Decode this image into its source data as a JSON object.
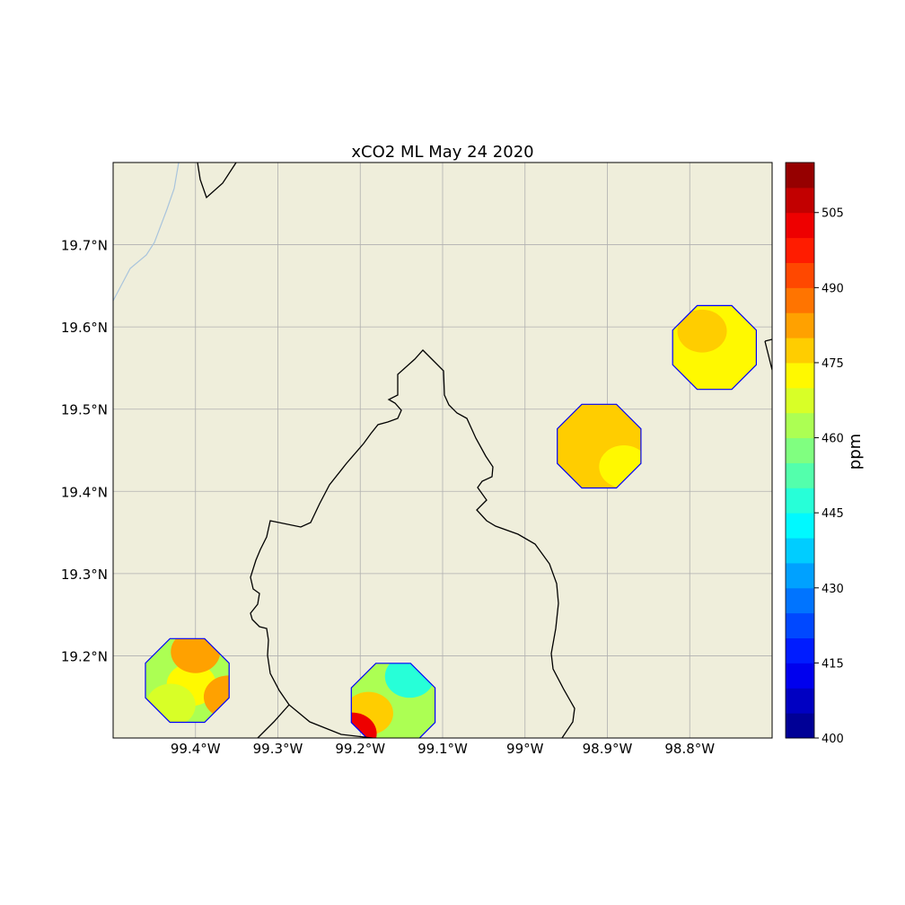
{
  "title": "xCO2 ML May 24 2020",
  "colorbar": {
    "label": "ppm",
    "min": 400,
    "max": 515,
    "step": 5,
    "ticks": [
      "400",
      "415",
      "430",
      "445",
      "460",
      "475",
      "490",
      "505"
    ],
    "tick_values": [
      400,
      415,
      430,
      445,
      460,
      475,
      490,
      505
    ],
    "colormap": "jet"
  },
  "map": {
    "extent": {
      "lon_min": -99.5,
      "lon_max": -98.7,
      "lat_min": 19.1,
      "lat_max": 19.8
    },
    "land_color": "#efeedb",
    "grid_color": "#b0b0b0",
    "border_color": "#000000",
    "river_color": "#a9c4dc",
    "lon_labels": [
      "99.4°W",
      "99.3°W",
      "99.2°W",
      "99.1°W",
      "99°W",
      "98.9°W",
      "98.8°W"
    ],
    "lon_values": [
      -99.4,
      -99.3,
      -99.2,
      -99.1,
      -99.0,
      -98.9,
      -98.8
    ],
    "lat_labels": [
      "19.2°N",
      "19.3°N",
      "19.4°N",
      "19.5°N",
      "19.6°N",
      "19.7°N"
    ],
    "lat_values": [
      19.2,
      19.3,
      19.4,
      19.5,
      19.6,
      19.7
    ]
  },
  "chart_data": {
    "type": "heatmap",
    "title": "xCO2 ML May 24 2020",
    "colorbar_label": "ppm",
    "value_range": [
      400,
      515
    ],
    "patches": [
      {
        "region": "southwest",
        "center": [
          -99.41,
          19.17
        ],
        "blobs": [
          {
            "center": [
              -99.465,
              19.17
            ],
            "value": 462
          },
          {
            "center": [
              -99.405,
              19.165
            ],
            "value": 470
          },
          {
            "center": [
              -99.4,
              19.205
            ],
            "value": 482
          },
          {
            "center": [
              -99.36,
              19.15
            ],
            "value": 483
          },
          {
            "center": [
              -99.43,
              19.14
            ],
            "value": 466
          }
        ]
      },
      {
        "region": "south-central",
        "center": [
          -99.16,
          19.14
        ],
        "blobs": [
          {
            "center": [
              -99.16,
              19.135
            ],
            "value": 462
          },
          {
            "center": [
              -99.14,
              19.175
            ],
            "value": 447
          },
          {
            "center": [
              -99.19,
              19.13
            ],
            "value": 475
          },
          {
            "center": [
              -99.21,
              19.105
            ],
            "value": 500
          }
        ]
      },
      {
        "region": "east",
        "center": [
          -98.91,
          19.455
        ],
        "blobs": [
          {
            "center": [
              -98.915,
              19.455
            ],
            "value": 477
          },
          {
            "center": [
              -98.88,
              19.43
            ],
            "value": 472
          }
        ]
      },
      {
        "region": "northeast",
        "center": [
          -98.77,
          19.575
        ],
        "blobs": [
          {
            "center": [
              -98.77,
              19.57
            ],
            "value": 472
          },
          {
            "center": [
              -98.785,
              19.595
            ],
            "value": 478
          }
        ]
      }
    ]
  }
}
